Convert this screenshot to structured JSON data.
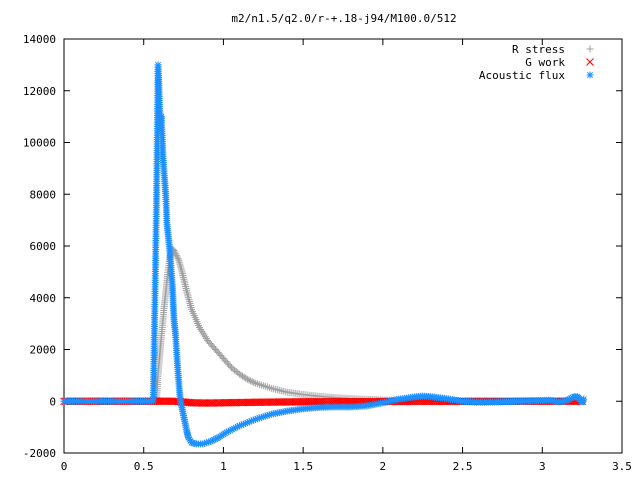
{
  "chart_data": {
    "type": "scatter",
    "title": "m2/n1.5/q2.0/r-+.18-j94/M100.0/512",
    "xlabel": "",
    "ylabel": "",
    "xlim": [
      0,
      3.5
    ],
    "ylim": [
      -2000,
      14000
    ],
    "x_ticks": [
      "0",
      "0.5",
      "1",
      "1.5",
      "2",
      "2.5",
      "3",
      "3.5"
    ],
    "y_ticks": [
      "-2000",
      "0",
      "2000",
      "4000",
      "6000",
      "8000",
      "10000",
      "12000",
      "14000"
    ],
    "x_tick_values": [
      0,
      0.5,
      1,
      1.5,
      2,
      2.5,
      3,
      3.5
    ],
    "y_tick_values": [
      -2000,
      0,
      2000,
      4000,
      6000,
      8000,
      10000,
      12000,
      14000
    ],
    "grid": false,
    "legend_position": "top-right",
    "series": [
      {
        "name": "R stress",
        "marker": "plus",
        "color": "#a0a0a0",
        "points": [
          [
            0,
            0
          ],
          [
            0.3,
            0
          ],
          [
            0.58,
            0
          ],
          [
            0.59,
            1050
          ],
          [
            0.6,
            1750
          ],
          [
            0.61,
            2450
          ],
          [
            0.62,
            3100
          ],
          [
            0.63,
            3750
          ],
          [
            0.64,
            4300
          ],
          [
            0.65,
            4900
          ],
          [
            0.66,
            5400
          ],
          [
            0.67,
            5750
          ],
          [
            0.68,
            5880
          ],
          [
            0.69,
            5820
          ],
          [
            0.7,
            5700
          ],
          [
            0.72,
            5450
          ],
          [
            0.74,
            5000
          ],
          [
            0.76,
            4500
          ],
          [
            0.78,
            4000
          ],
          [
            0.8,
            3550
          ],
          [
            0.85,
            2850
          ],
          [
            0.9,
            2350
          ],
          [
            0.95,
            2000
          ],
          [
            1.0,
            1650
          ],
          [
            1.05,
            1300
          ],
          [
            1.1,
            1050
          ],
          [
            1.15,
            850
          ],
          [
            1.2,
            700
          ],
          [
            1.3,
            500
          ],
          [
            1.4,
            350
          ],
          [
            1.5,
            260
          ],
          [
            1.6,
            190
          ],
          [
            1.7,
            140
          ],
          [
            1.8,
            100
          ],
          [
            1.9,
            70
          ],
          [
            2.0,
            50
          ],
          [
            2.2,
            30
          ],
          [
            2.5,
            15
          ],
          [
            2.8,
            8
          ],
          [
            3.0,
            5
          ],
          [
            3.2,
            2
          ],
          [
            3.25,
            0
          ]
        ]
      },
      {
        "name": "G work",
        "marker": "cross",
        "color": "#ff0000",
        "points": [
          [
            0,
            0
          ],
          [
            0.6,
            0
          ],
          [
            0.7,
            0
          ],
          [
            0.75,
            -30
          ],
          [
            0.8,
            -60
          ],
          [
            0.9,
            -70
          ],
          [
            1.0,
            -60
          ],
          [
            1.2,
            -40
          ],
          [
            1.5,
            -20
          ],
          [
            2.0,
            -10
          ],
          [
            2.5,
            -5
          ],
          [
            3.0,
            0
          ],
          [
            3.25,
            0
          ]
        ]
      },
      {
        "name": "Acoustic flux",
        "marker": "star",
        "color": "#1e90ff",
        "points": [
          [
            0,
            0
          ],
          [
            0.2,
            0
          ],
          [
            0.4,
            0
          ],
          [
            0.56,
            0
          ],
          [
            0.58,
            7650
          ],
          [
            0.59,
            13000
          ],
          [
            0.6,
            11300
          ],
          [
            0.605,
            10900
          ],
          [
            0.61,
            11000
          ],
          [
            0.615,
            10350
          ],
          [
            0.62,
            9550
          ],
          [
            0.63,
            8650
          ],
          [
            0.64,
            7800
          ],
          [
            0.645,
            6900
          ],
          [
            0.66,
            6050
          ],
          [
            0.67,
            5250
          ],
          [
            0.68,
            4450
          ],
          [
            0.685,
            3750
          ],
          [
            0.69,
            3150
          ],
          [
            0.7,
            2550
          ],
          [
            0.705,
            2050
          ],
          [
            0.71,
            1550
          ],
          [
            0.715,
            1150
          ],
          [
            0.72,
            750
          ],
          [
            0.725,
            350
          ],
          [
            0.73,
            50
          ],
          [
            0.74,
            -250
          ],
          [
            0.75,
            -550
          ],
          [
            0.76,
            -850
          ],
          [
            0.77,
            -1150
          ],
          [
            0.78,
            -1400
          ],
          [
            0.8,
            -1600
          ],
          [
            0.83,
            -1650
          ],
          [
            0.87,
            -1650
          ],
          [
            0.92,
            -1550
          ],
          [
            0.97,
            -1400
          ],
          [
            1.02,
            -1200
          ],
          [
            1.1,
            -950
          ],
          [
            1.2,
            -700
          ],
          [
            1.3,
            -500
          ],
          [
            1.4,
            -380
          ],
          [
            1.5,
            -290
          ],
          [
            1.6,
            -240
          ],
          [
            1.7,
            -220
          ],
          [
            1.8,
            -220
          ],
          [
            1.9,
            -180
          ],
          [
            2.0,
            -60
          ],
          [
            2.1,
            80
          ],
          [
            2.2,
            170
          ],
          [
            2.25,
            200
          ],
          [
            2.3,
            180
          ],
          [
            2.4,
            100
          ],
          [
            2.5,
            0
          ],
          [
            2.6,
            -40
          ],
          [
            2.7,
            -30
          ],
          [
            2.8,
            -10
          ],
          [
            2.9,
            10
          ],
          [
            3.0,
            30
          ],
          [
            3.05,
            40
          ],
          [
            3.1,
            -30
          ],
          [
            3.15,
            20
          ],
          [
            3.2,
            180
          ],
          [
            3.22,
            170
          ],
          [
            3.24,
            50
          ],
          [
            3.25,
            -30
          ],
          [
            3.26,
            80
          ]
        ]
      }
    ]
  }
}
